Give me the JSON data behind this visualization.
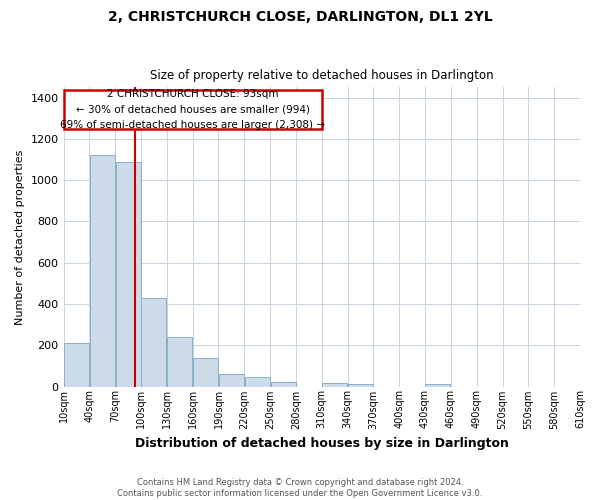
{
  "title": "2, CHRISTCHURCH CLOSE, DARLINGTON, DL1 2YL",
  "subtitle": "Size of property relative to detached houses in Darlington",
  "xlabel": "Distribution of detached houses by size in Darlington",
  "ylabel": "Number of detached properties",
  "bar_color": "#ccdaea",
  "bar_edge_color": "#8aafc8",
  "bin_edges": [
    10,
    40,
    70,
    100,
    130,
    160,
    190,
    220,
    250,
    280,
    310,
    340,
    370,
    400,
    430,
    460,
    490,
    520,
    550,
    580,
    610
  ],
  "bar_heights": [
    210,
    1120,
    1090,
    430,
    240,
    140,
    60,
    45,
    22,
    0,
    15,
    10,
    0,
    0,
    10,
    0,
    0,
    0,
    0,
    0
  ],
  "property_line_x": 93,
  "property_line_color": "#cc0000",
  "xlim": [
    10,
    610
  ],
  "ylim": [
    0,
    1450
  ],
  "yticks": [
    0,
    200,
    400,
    600,
    800,
    1000,
    1200,
    1400
  ],
  "xtick_labels": [
    "10sqm",
    "40sqm",
    "70sqm",
    "100sqm",
    "130sqm",
    "160sqm",
    "190sqm",
    "220sqm",
    "250sqm",
    "280sqm",
    "310sqm",
    "340sqm",
    "370sqm",
    "400sqm",
    "430sqm",
    "460sqm",
    "490sqm",
    "520sqm",
    "550sqm",
    "580sqm",
    "610sqm"
  ],
  "annotation_line1": "2 CHRISTCHURCH CLOSE: 93sqm",
  "annotation_line2": "← 30% of detached houses are smaller (994)",
  "annotation_line3": "69% of semi-detached houses are larger (2,308) →",
  "footer_text": "Contains HM Land Registry data © Crown copyright and database right 2024.\nContains public sector information licensed under the Open Government Licence v3.0.",
  "background_color": "#ffffff",
  "grid_color": "#c8d4e0"
}
